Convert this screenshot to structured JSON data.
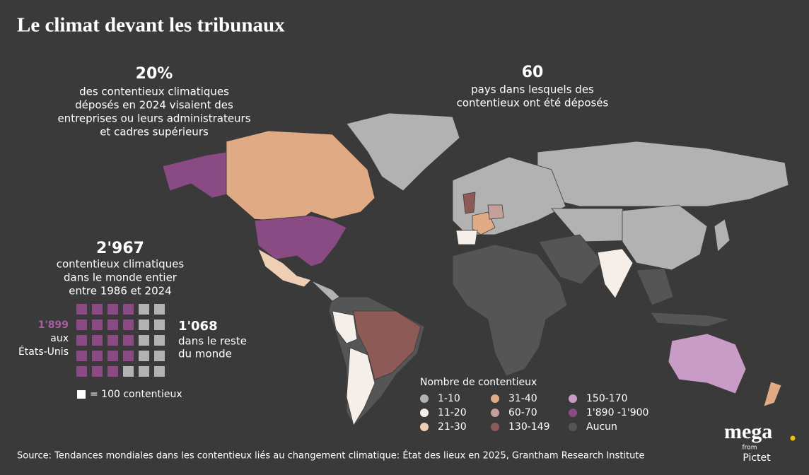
{
  "header": {
    "title": "Le climat devant les tribunaux"
  },
  "stats": [
    {
      "value": "20%",
      "lines": [
        "des contentieux climatiques",
        "déposés en 2024 visaient des",
        "entreprises ou leurs administrateurs",
        "et cadres supérieurs"
      ]
    },
    {
      "value": "60",
      "lines": [
        "pays dans lesquels des",
        "contentieux ont été déposés"
      ]
    },
    {
      "value": "2'967",
      "lines": [
        "contentieux climatiques",
        "dans le monde entier",
        "entre 1986 et 2024"
      ]
    }
  ],
  "waffle": {
    "us": {
      "value": 1899,
      "label": "1'899",
      "lines": [
        "aux",
        "États-Unis"
      ]
    },
    "rest": {
      "value": 1068,
      "label": "1'068",
      "lines": [
        "dans le reste",
        "du monde"
      ]
    },
    "unit": {
      "value": 100,
      "label": "= 100 contentieux"
    }
  },
  "legend": {
    "title": "Nombre de contentieux",
    "items": [
      {
        "label": "1-10",
        "color": "#b2b2b2"
      },
      {
        "label": "11-20",
        "color": "#f6efe9"
      },
      {
        "label": "21-30",
        "color": "#efcfb4"
      },
      {
        "label": "31-40",
        "color": "#dfaa84"
      },
      {
        "label": "60-70",
        "color": "#c4a09a"
      },
      {
        "label": "130-149",
        "color": "#8d5a55"
      },
      {
        "label": "150-170",
        "color": "#c89cc6"
      },
      {
        "label": "1'890 -1'900",
        "color": "#8a4a84"
      },
      {
        "label": "Aucun",
        "color": "#555555"
      }
    ]
  },
  "source": "Source: Tendances mondiales dans les contentieux liés au changement climatique: État des lieux en 2025, Grantham Research Institute",
  "logo": {
    "name": "mega",
    "from": "from",
    "brand": "Pictet"
  }
}
